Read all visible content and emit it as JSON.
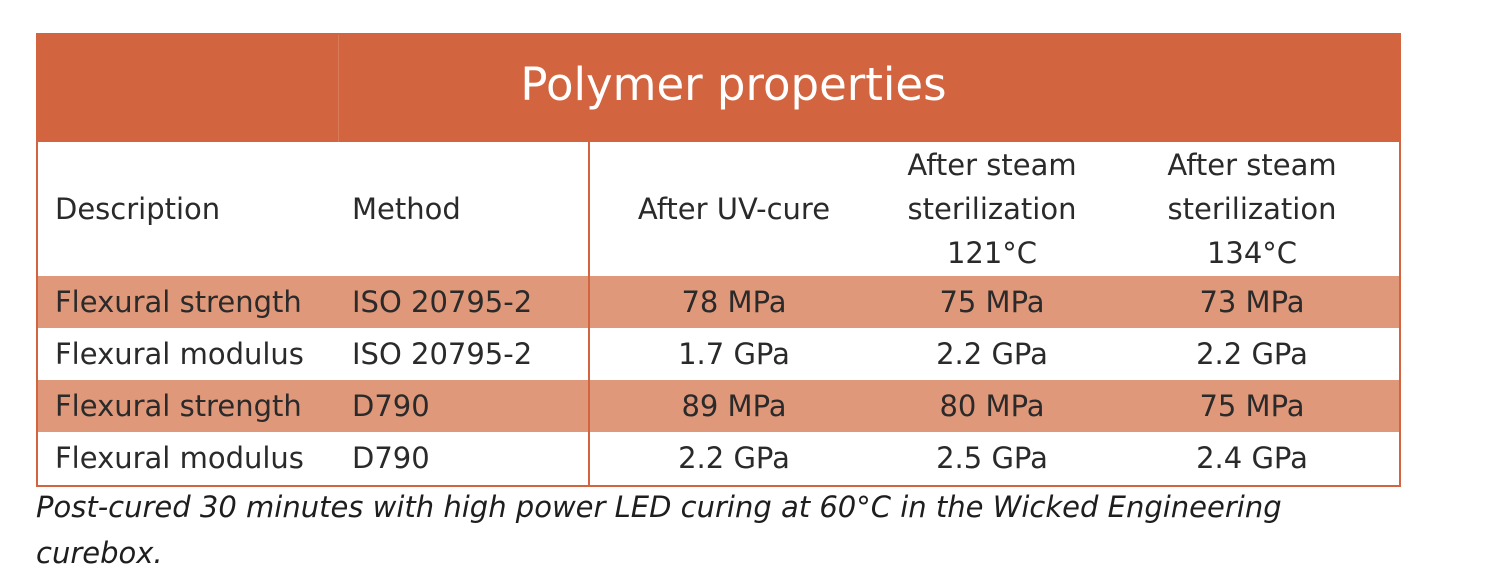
{
  "table": {
    "title": "Polymer properties",
    "headers": {
      "description": "Description",
      "method": "Method",
      "after_uv": "After UV-cure",
      "after_121": [
        "After steam",
        "sterilization",
        "121°C"
      ],
      "after_134": [
        "After steam",
        "sterilization",
        "134°C"
      ]
    },
    "rows": [
      {
        "description": "Flexural strength",
        "method": "ISO 20795-2",
        "after_uv": "78 MPa",
        "after_121": "75 MPa",
        "after_134": "73 MPa"
      },
      {
        "description": "Flexural modulus",
        "method": "ISO 20795-2",
        "after_uv": "1.7 GPa",
        "after_121": "2.2 GPa",
        "after_134": "2.2 GPa"
      },
      {
        "description": "Flexural strength",
        "method": "D790",
        "after_uv": "89 MPa",
        "after_121": "80 MPa",
        "after_134": "75 MPa"
      },
      {
        "description": "Flexural modulus",
        "method": "D790",
        "after_uv": "2.2 GPa",
        "after_121": "2.5 GPa",
        "after_134": "2.4 GPa"
      }
    ],
    "row_shading": [
      "#e0987a",
      "#ffffff",
      "#e0987a",
      "#ffffff"
    ]
  },
  "footnote": "Post-cured 30 minutes with high power LED curing at 60°C in the Wicked Engineering curebox.",
  "colors": {
    "accent": "#d2643f",
    "shaded_row": "#e0987a",
    "title_text": "#ffffff"
  }
}
